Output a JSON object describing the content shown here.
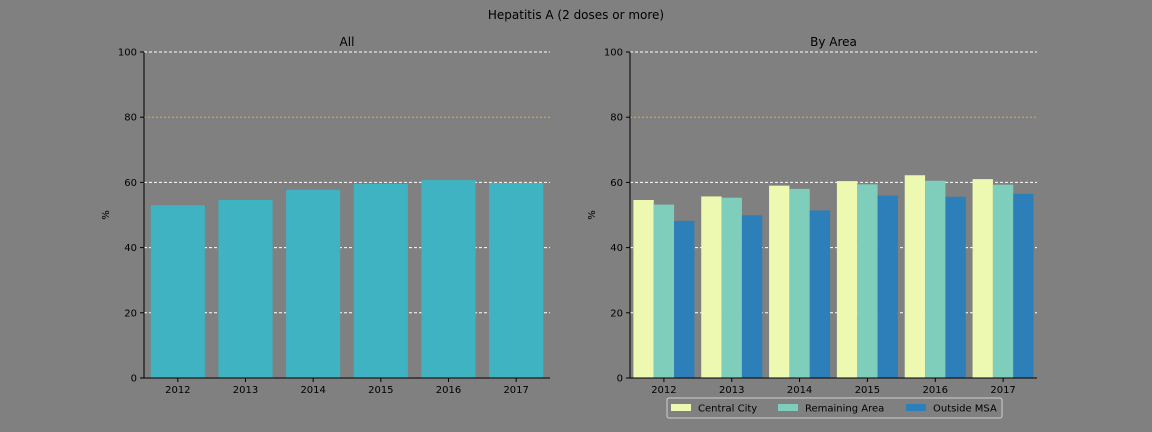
{
  "figure": {
    "title": "Hepatitis A (2 doses or more)",
    "background": "#808080",
    "reference_line_color": "#f0a830",
    "grid_color": "#ffffff"
  },
  "chart_data": [
    {
      "type": "bar",
      "title": "All",
      "xlabel": "",
      "ylabel": "%",
      "ylim": [
        0,
        100
      ],
      "yticks": [
        0,
        20,
        40,
        60,
        80,
        100
      ],
      "grid": true,
      "reference_line": 80,
      "categories": [
        "2012",
        "2013",
        "2014",
        "2015",
        "2016",
        "2017"
      ],
      "series": [
        {
          "color": "#3fb3c2",
          "values": [
            53.0,
            54.6,
            57.7,
            59.5,
            60.7,
            59.8
          ]
        }
      ]
    },
    {
      "type": "bar",
      "title": "By Area",
      "xlabel": "",
      "ylabel": "%",
      "ylim": [
        0,
        100
      ],
      "yticks": [
        0,
        20,
        40,
        60,
        80,
        100
      ],
      "grid": true,
      "reference_line": 80,
      "legend_position": "bottom-right",
      "categories": [
        "2012",
        "2013",
        "2014",
        "2015",
        "2016",
        "2017"
      ],
      "series": [
        {
          "name": "Central City",
          "color": "#edf8b1",
          "values": [
            54.6,
            55.7,
            59.0,
            60.4,
            62.2,
            61.0
          ]
        },
        {
          "name": "Remaining Area",
          "color": "#7fcdbb",
          "values": [
            53.2,
            55.3,
            58.0,
            59.4,
            60.5,
            59.3
          ]
        },
        {
          "name": "Outside MSA",
          "color": "#2c7fb8",
          "values": [
            48.2,
            49.9,
            51.4,
            56.0,
            55.6,
            56.5
          ]
        }
      ]
    }
  ]
}
